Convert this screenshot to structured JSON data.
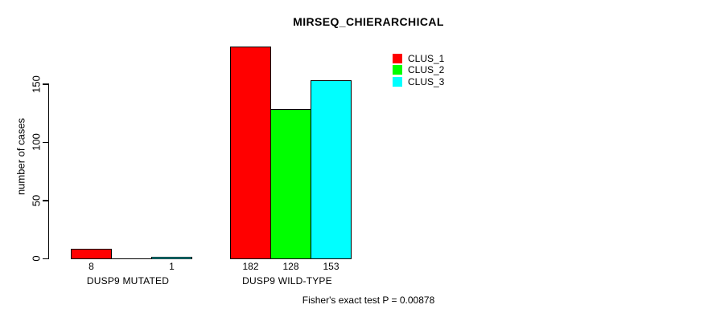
{
  "chart_data": {
    "type": "bar",
    "title": "MIRSEQ_CHIERARCHICAL",
    "ylabel": "number of cases",
    "xlabel": "",
    "yticks": [
      0,
      50,
      100,
      150
    ],
    "ylim": [
      0,
      190
    ],
    "grid": false,
    "legend_position": "top-right",
    "categories": [
      "DUSP9 MUTATED",
      "DUSP9 WILD-TYPE"
    ],
    "series": [
      {
        "name": "CLUS_1",
        "color": "#ff0000",
        "values": [
          8,
          182
        ]
      },
      {
        "name": "CLUS_2",
        "color": "#00ff00",
        "values": [
          0,
          128
        ]
      },
      {
        "name": "CLUS_3",
        "color": "#00ffff",
        "values": [
          1,
          153
        ]
      }
    ],
    "bar_value_labels": [
      [
        "8",
        "",
        "1"
      ],
      [
        "182",
        "128",
        "153"
      ]
    ],
    "annotation": "Fisher's exact test P = 0.00878"
  },
  "colors": {
    "background": "#ffffff",
    "text": "#000000",
    "axis": "#000000",
    "bar_border": "#000000"
  }
}
